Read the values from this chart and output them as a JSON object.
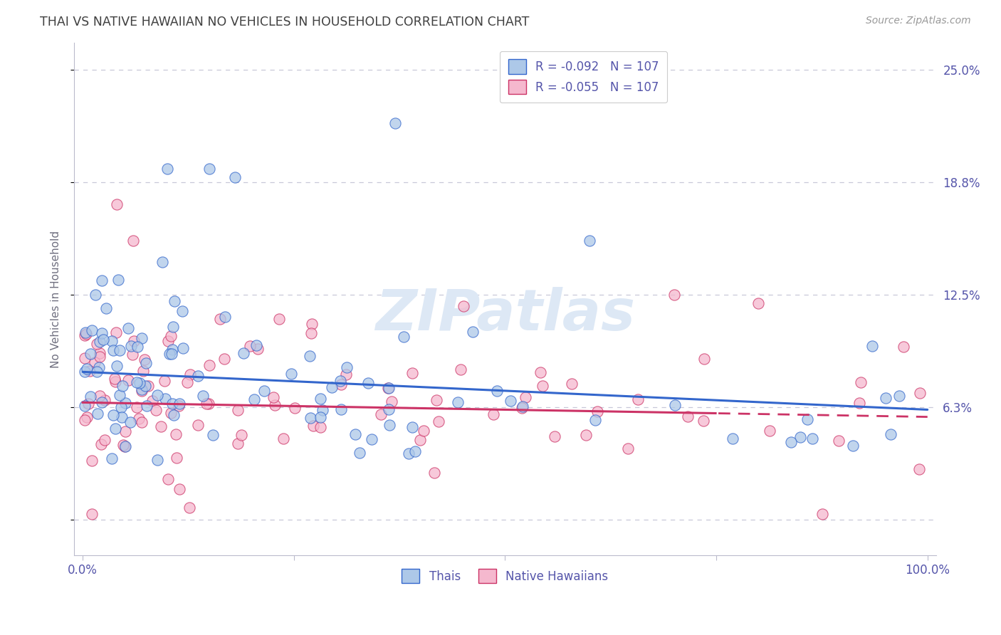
{
  "title": "THAI VS NATIVE HAWAIIAN NO VEHICLES IN HOUSEHOLD CORRELATION CHART",
  "source": "Source: ZipAtlas.com",
  "ylabel": "No Vehicles in Household",
  "legend_entry1": "R = -0.092   N = 107",
  "legend_entry2": "R = -0.055   N = 107",
  "legend_label1": "Thais",
  "legend_label2": "Native Hawaiians",
  "color_blue": "#adc8e8",
  "color_pink": "#f5b8ce",
  "line_blue": "#3366cc",
  "line_pink": "#cc3366",
  "background_color": "#ffffff",
  "grid_color": "#c8c8d8",
  "title_color": "#404040",
  "axis_label_color": "#5555aa",
  "watermark_color": "#dde8f5",
  "scatter_size": 120,
  "scatter_alpha": 0.75,
  "thai_intercept": 8.2,
  "thai_slope": -0.021,
  "native_intercept": 6.5,
  "native_slope": -0.008,
  "seed_thai": 1001,
  "seed_native": 2002,
  "n": 107,
  "ymax": 25.0,
  "ymin": -2.0,
  "xmax": 100.0,
  "xmin": -1.0
}
